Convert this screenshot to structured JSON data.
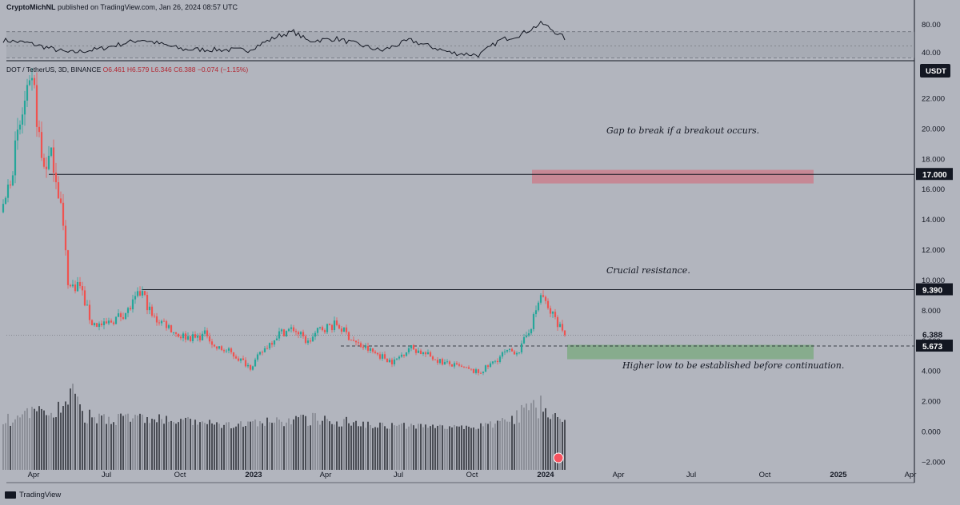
{
  "header": {
    "author": "CryptoMichNL",
    "published": "published on TradingView.com, Jan 26, 2024 08:57 UTC"
  },
  "legend": {
    "symbol": "DOT / TetherUS, 3D, BINANCE",
    "open": "O6.461",
    "high": "H6.579",
    "low": "L6.346",
    "close": "C6.388",
    "change": "−0.074 (−1.15%)"
  },
  "branding": {
    "logo_text": "TradingView"
  },
  "annotations": {
    "gap": "Gap to break if a breakout occurs.",
    "resistance": "Crucial resistance.",
    "higher_low": "Higher low to be established before continuation."
  },
  "price_axis": {
    "currency": "USDT",
    "ticks": [
      "22.000",
      "20.000",
      "18.000",
      "16.000",
      "14.000",
      "12.000",
      "10.000",
      "8.000",
      "6.000",
      "4.000",
      "2.000",
      "0.000",
      "−2.000"
    ],
    "labels": [
      {
        "text": "17.000",
        "value": 17.0,
        "style": "box"
      },
      {
        "text": "9.390",
        "value": 9.39,
        "style": "box"
      },
      {
        "text": "6.388",
        "value": 6.388,
        "style": "plain",
        "sub": "1d 16h"
      },
      {
        "text": "5.673",
        "value": 5.673,
        "style": "box"
      }
    ]
  },
  "rsi_axis": {
    "ticks": [
      "80.00",
      "40.00"
    ]
  },
  "time_axis": [
    "Apr",
    "Jul",
    "Oct",
    "2023",
    "Apr",
    "Jul",
    "Oct",
    "2024",
    "Apr",
    "Jul",
    "Oct",
    "2025",
    "Apr"
  ],
  "colors": {
    "background": "#b2b5be",
    "up": "#26a69a",
    "down": "#ef5350",
    "red_zone": "#c9808e",
    "green_zone": "#7faa85",
    "line": "#131722"
  },
  "chart_data": {
    "type": "candlestick",
    "symbol": "DOT/USDT",
    "timeframe": "3D",
    "ylim": [
      -2.5,
      24.5
    ],
    "levels": [
      17.0,
      9.39,
      5.673
    ],
    "zones": [
      {
        "from_date": "2023-12-15",
        "to_date": "2024-12-01",
        "low": 16.4,
        "high": 17.3,
        "color": "red"
      },
      {
        "from_date": "2024-01-28",
        "to_date": "2024-12-01",
        "low": 4.8,
        "high": 5.75,
        "color": "green"
      }
    ],
    "price_path": [
      [
        "2022-02-22",
        14.5
      ],
      [
        "2022-03-10",
        18.8
      ],
      [
        "2022-03-20",
        21.5
      ],
      [
        "2022-04-01",
        22.8
      ],
      [
        "2022-04-12",
        17.5
      ],
      [
        "2022-04-25",
        18.2
      ],
      [
        "2022-05-05",
        15.0
      ],
      [
        "2022-05-15",
        9.5
      ],
      [
        "2022-05-28",
        9.8
      ],
      [
        "2022-06-12",
        7.2
      ],
      [
        "2022-06-28",
        7.0
      ],
      [
        "2022-07-10",
        7.4
      ],
      [
        "2022-07-28",
        8.0
      ],
      [
        "2022-08-14",
        9.3
      ],
      [
        "2022-08-28",
        7.5
      ],
      [
        "2022-09-12",
        7.2
      ],
      [
        "2022-09-28",
        6.4
      ],
      [
        "2022-10-20",
        6.2
      ],
      [
        "2022-11-05",
        6.5
      ],
      [
        "2022-11-12",
        5.6
      ],
      [
        "2022-12-01",
        5.3
      ],
      [
        "2022-12-28",
        4.3
      ],
      [
        "2023-01-15",
        5.5
      ],
      [
        "2023-02-01",
        6.5
      ],
      [
        "2023-02-20",
        6.8
      ],
      [
        "2023-03-10",
        5.9
      ],
      [
        "2023-03-25",
        6.8
      ],
      [
        "2023-04-15",
        7.1
      ],
      [
        "2023-05-10",
        5.8
      ],
      [
        "2023-06-10",
        5.0
      ],
      [
        "2023-06-25",
        4.6
      ],
      [
        "2023-07-15",
        5.6
      ],
      [
        "2023-08-05",
        5.1
      ],
      [
        "2023-08-25",
        4.6
      ],
      [
        "2023-09-20",
        4.2
      ],
      [
        "2023-10-10",
        3.9
      ],
      [
        "2023-10-28",
        4.6
      ],
      [
        "2023-11-10",
        5.2
      ],
      [
        "2023-11-30",
        5.4
      ],
      [
        "2023-12-15",
        7.2
      ],
      [
        "2023-12-27",
        9.2
      ],
      [
        "2024-01-03",
        8.1
      ],
      [
        "2024-01-12",
        7.6
      ],
      [
        "2024-01-20",
        6.9
      ],
      [
        "2024-01-26",
        6.388
      ]
    ],
    "volume_envelope": [
      [
        "2022-02-22",
        1.0
      ],
      [
        "2022-05-10",
        2.2
      ],
      [
        "2022-05-15",
        3.8
      ],
      [
        "2022-06-01",
        1.4
      ],
      [
        "2022-08-20",
        1.2
      ],
      [
        "2022-12-01",
        0.6
      ],
      [
        "2023-03-20",
        1.2
      ],
      [
        "2023-06-15",
        0.6
      ],
      [
        "2023-10-01",
        0.4
      ],
      [
        "2023-11-10",
        0.9
      ],
      [
        "2023-12-28",
        2.6
      ],
      [
        "2024-01-26",
        0.8
      ]
    ],
    "rsi_path": [
      [
        "2022-02-22",
        58
      ],
      [
        "2022-03-25",
        54
      ],
      [
        "2022-05-15",
        40
      ],
      [
        "2022-06-20",
        45
      ],
      [
        "2022-08-14",
        59
      ],
      [
        "2022-10-05",
        45
      ],
      [
        "2022-12-25",
        44
      ],
      [
        "2023-02-01",
        64
      ],
      [
        "2023-02-20",
        70
      ],
      [
        "2023-03-10",
        57
      ],
      [
        "2023-04-15",
        60
      ],
      [
        "2023-06-10",
        43
      ],
      [
        "2023-07-15",
        58
      ],
      [
        "2023-09-05",
        40
      ],
      [
        "2023-10-10",
        37
      ],
      [
        "2023-11-05",
        58
      ],
      [
        "2023-12-01",
        66
      ],
      [
        "2023-12-27",
        82
      ],
      [
        "2024-01-05",
        76
      ],
      [
        "2024-01-26",
        60
      ]
    ]
  }
}
